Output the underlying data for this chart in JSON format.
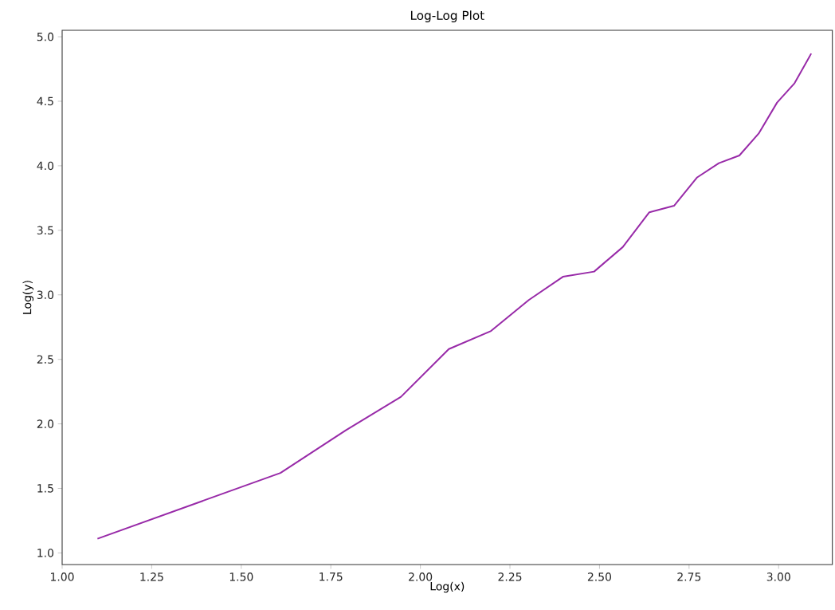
{
  "chart_data": {
    "type": "line",
    "title": "Log-Log Plot",
    "xlabel": "Log(x)",
    "ylabel": "Log(y)",
    "x": [
      1.0986,
      1.6094,
      1.7918,
      1.9459,
      2.0794,
      2.1972,
      2.3026,
      2.3979,
      2.4849,
      2.5649,
      2.6391,
      2.7081,
      2.7726,
      2.8332,
      2.8904,
      2.9444,
      2.9957,
      3.0445,
      3.091
    ],
    "series": [
      {
        "color": "#982aa8",
        "values": [
          1.11,
          1.62,
          1.95,
          2.21,
          2.58,
          2.72,
          2.96,
          3.14,
          3.18,
          3.37,
          3.64,
          3.69,
          3.91,
          4.02,
          4.08,
          4.25,
          4.49,
          4.64,
          4.87
        ]
      }
    ],
    "xlim": [
      1.0,
      3.15
    ],
    "ylim": [
      0.91,
      5.05
    ],
    "xticks": [
      {
        "value": 1.0,
        "label": "1.00"
      },
      {
        "value": 1.25,
        "label": "1.25"
      },
      {
        "value": 1.5,
        "label": "1.50"
      },
      {
        "value": 1.75,
        "label": "1.75"
      },
      {
        "value": 2.0,
        "label": "2.00"
      },
      {
        "value": 2.25,
        "label": "2.25"
      },
      {
        "value": 2.5,
        "label": "2.50"
      },
      {
        "value": 2.75,
        "label": "2.75"
      },
      {
        "value": 3.0,
        "label": "3.00"
      }
    ],
    "yticks": [
      {
        "value": 1.0,
        "label": "1.0"
      },
      {
        "value": 1.5,
        "label": "1.5"
      },
      {
        "value": 2.0,
        "label": "2.0"
      },
      {
        "value": 2.5,
        "label": "2.5"
      },
      {
        "value": 3.0,
        "label": "3.0"
      },
      {
        "value": 3.5,
        "label": "3.5"
      },
      {
        "value": 4.0,
        "label": "4.0"
      },
      {
        "value": 4.5,
        "label": "4.5"
      },
      {
        "value": 5.0,
        "label": "5.0"
      }
    ],
    "grid": false,
    "legend": false,
    "marker": "none",
    "line_style": "solid"
  }
}
